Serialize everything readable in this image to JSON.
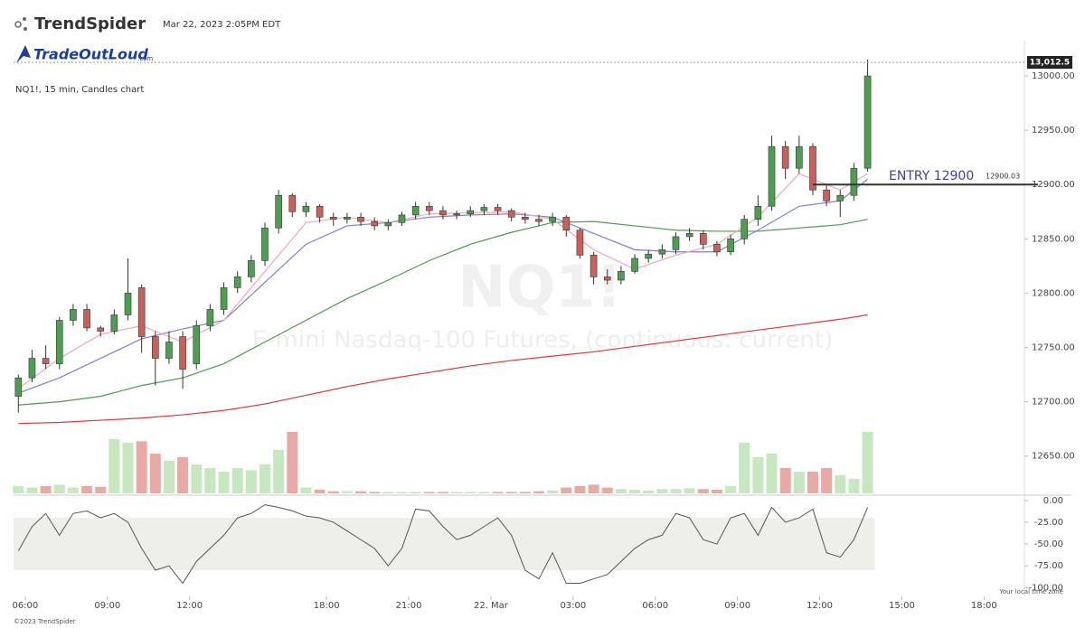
{
  "header": {
    "brand": "TrendSpider",
    "timestamp": "Mar 22, 2023 2:05PM EDT",
    "logo": "TradeOutLoud",
    "logo_suffix": ".com",
    "symbol": "NQ1!, 15 min, Candles chart",
    "watermark": "NQ1!",
    "watermark_subtitle": "E-mini Nasdaq-100 Futures, (continuous: current)",
    "timezone_note": "Your local time zone",
    "footer": "©2023 TrendSpider"
  },
  "chart_data": [
    {
      "type": "candlestick",
      "xlim": [
        -0.85,
        72.75
      ],
      "ylim": [
        12614,
        13020
      ],
      "yticks": [
        {
          "value": 12650,
          "label": "12650.00"
        },
        {
          "value": 12700,
          "label": "12700.00"
        },
        {
          "value": 12750,
          "label": "12750.00"
        },
        {
          "value": 12800,
          "label": "12800.00"
        },
        {
          "value": 12850,
          "label": "12850.00"
        },
        {
          "value": 12900,
          "label": "12900.00"
        },
        {
          "value": 12950,
          "label": "12950.00"
        },
        {
          "value": 13000,
          "label": "13000.00"
        }
      ],
      "x": [
        -0.5,
        0.5,
        1.5,
        2.5,
        3.5,
        4.5,
        5.5,
        6.5,
        7.5,
        8.5,
        9.5,
        10.5,
        11.5,
        12.5,
        13.5,
        14.5,
        15.5,
        16.5,
        17.5,
        18.5,
        19.5,
        20.5,
        21.5,
        22.5,
        23.5,
        24.5,
        25.5,
        26.5,
        27.5,
        28.5,
        29.5,
        30.5,
        31.5,
        32.5,
        33.5,
        34.5,
        35.5,
        36.5,
        37.5,
        38.5,
        39.5,
        40.5,
        41.5,
        42.5,
        43.5,
        44.5,
        45.5,
        46.5,
        47.5,
        48.5,
        49.5,
        50.5,
        51.5,
        52.5,
        53.5,
        54.5,
        55.5,
        56.5,
        57.5,
        58.5,
        59.5,
        60.5,
        61.5
      ],
      "open": [
        12705,
        12722,
        12740,
        12735,
        12775,
        12785,
        12768,
        12765,
        12780,
        12805,
        12760,
        12740,
        12760,
        12735,
        12770,
        12785,
        12805,
        12815,
        12830,
        12860,
        12890,
        12875,
        12880,
        12870,
        12868,
        12870,
        12866,
        12862,
        12865,
        12872,
        12880,
        12876,
        12872,
        12873,
        12876,
        12879,
        12876,
        12870,
        12868,
        12866,
        12870,
        12858,
        12835,
        12815,
        12812,
        12820,
        12832,
        12836,
        12840,
        12852,
        12855,
        12845,
        12838,
        12850,
        12868,
        12880,
        12935,
        12915,
        12935,
        12895,
        12885,
        12890,
        12915
      ],
      "high": [
        12725,
        12748,
        12752,
        12778,
        12790,
        12790,
        12770,
        12785,
        12832,
        12808,
        12765,
        12765,
        12765,
        12775,
        12790,
        12810,
        12820,
        12835,
        12865,
        12895,
        12892,
        12884,
        12882,
        12874,
        12874,
        12874,
        12870,
        12868,
        12875,
        12884,
        12884,
        12880,
        12876,
        12880,
        12882,
        12882,
        12878,
        12874,
        12872,
        12874,
        12872,
        12860,
        12838,
        12822,
        12825,
        12836,
        12840,
        12845,
        12856,
        12860,
        12858,
        12848,
        12854,
        12872,
        12890,
        12945,
        12940,
        12945,
        12938,
        12900,
        12895,
        12920,
        13015
      ],
      "low": [
        12690,
        12718,
        12730,
        12730,
        12770,
        12765,
        12760,
        12762,
        12775,
        12745,
        12715,
        12735,
        12712,
        12730,
        12765,
        12780,
        12800,
        12810,
        12825,
        12855,
        12870,
        12870,
        12865,
        12862,
        12864,
        12862,
        12858,
        12858,
        12862,
        12868,
        12872,
        12868,
        12868,
        12870,
        12872,
        12872,
        12866,
        12864,
        12862,
        12862,
        12852,
        12832,
        12808,
        12808,
        12808,
        12818,
        12828,
        12832,
        12836,
        12848,
        12840,
        12834,
        12835,
        12845,
        12862,
        12876,
        12905,
        12910,
        12890,
        12880,
        12870,
        12885,
        12912
      ],
      "close": [
        12722,
        12740,
        12735,
        12775,
        12785,
        12768,
        12765,
        12780,
        12800,
        12760,
        12740,
        12755,
        12730,
        12770,
        12785,
        12805,
        12815,
        12830,
        12860,
        12890,
        12875,
        12880,
        12870,
        12868,
        12870,
        12866,
        12862,
        12865,
        12872,
        12880,
        12876,
        12872,
        12873,
        12876,
        12879,
        12876,
        12870,
        12868,
        12866,
        12870,
        12858,
        12835,
        12815,
        12812,
        12820,
        12832,
        12836,
        12840,
        12852,
        12855,
        12845,
        12838,
        12850,
        12868,
        12880,
        12935,
        12915,
        12935,
        12895,
        12885,
        12890,
        12915,
        13000
      ],
      "up_color": "#4f9d52",
      "down_color": "#c9605a",
      "volume": {
        "ylim": [
          0,
          100
        ],
        "up_color": "#c6e7bf",
        "down_color": "#e9aaa5",
        "values": [
          10,
          8,
          10,
          12,
          8,
          10,
          9,
          75,
          70,
          72,
          55,
          45,
          50,
          40,
          35,
          30,
          35,
          32,
          40,
          60,
          85,
          8,
          5,
          3,
          3,
          3,
          2,
          2,
          2,
          2,
          2,
          2,
          2,
          2,
          2,
          2,
          2,
          2,
          3,
          4,
          8,
          10,
          12,
          8,
          6,
          5,
          4,
          6,
          6,
          7,
          6,
          5,
          10,
          70,
          50,
          55,
          35,
          30,
          30,
          35,
          25,
          20,
          85
        ]
      },
      "ma_x": [
        -0.5,
        2.5,
        5.5,
        8.5,
        11.5,
        14.5,
        17.5,
        20.5,
        23.5,
        26.5,
        29.5,
        32.5,
        35.5,
        38.5,
        41.5,
        44.5,
        47.5,
        50.5,
        53.5,
        56.5,
        59.5,
        61.5
      ],
      "moving_averages": [
        {
          "color": "#d43c3c",
          "values": [
            12680,
            12681,
            12683,
            12685,
            12688,
            12692,
            12698,
            12706,
            12714,
            12721,
            12727,
            12733,
            12738,
            12742,
            12746,
            12751,
            12756,
            12761,
            12766,
            12771,
            12776,
            12780
          ]
        },
        {
          "color": "#4d9a4d",
          "values": [
            12697,
            12700,
            12705,
            12715,
            12722,
            12735,
            12755,
            12775,
            12795,
            12812,
            12830,
            12845,
            12856,
            12865,
            12866,
            12862,
            12858,
            12857,
            12857,
            12860,
            12863,
            12868
          ]
        },
        {
          "color": "#7d80d2",
          "values": [
            12708,
            12722,
            12740,
            12758,
            12767,
            12775,
            12810,
            12845,
            12862,
            12865,
            12870,
            12872,
            12873,
            12870,
            12855,
            12840,
            12838,
            12838,
            12858,
            12880,
            12885,
            12905
          ]
        },
        {
          "color": "#f2a7b5",
          "values": [
            12712,
            12740,
            12762,
            12770,
            12755,
            12775,
            12820,
            12865,
            12870,
            12865,
            12873,
            12874,
            12875,
            12868,
            12840,
            12822,
            12835,
            12845,
            12870,
            12910,
            12895,
            12910
          ]
        }
      ],
      "last_price": {
        "value": 13012.5,
        "label": "13,012.5"
      },
      "entry": {
        "text": "ENTRY 12900",
        "value": 12900.03,
        "label": "12900.03",
        "start_x": 57.5
      }
    },
    {
      "type": "line",
      "xlim": [
        -0.85,
        72.75
      ],
      "ylim": [
        -110,
        6
      ],
      "yticks": [
        {
          "value": 0,
          "label": "0.00"
        },
        {
          "value": -25,
          "label": "-25.00"
        },
        {
          "value": -50,
          "label": "-50.00"
        },
        {
          "value": -75,
          "label": "-75.00"
        },
        {
          "value": -100,
          "label": "-100.00"
        }
      ],
      "band": [
        -80,
        -20
      ],
      "band_color": "#eeeeea",
      "xticks": [
        {
          "value": 0,
          "label": "06:00"
        },
        {
          "value": 6,
          "label": "09:00"
        },
        {
          "value": 12,
          "label": "12:00"
        },
        {
          "value": 22,
          "label": "18:00"
        },
        {
          "value": 28,
          "label": "21:00"
        },
        {
          "value": 34,
          "label": "22. Mar"
        },
        {
          "value": 40,
          "label": "03:00"
        },
        {
          "value": 46,
          "label": "06:00"
        },
        {
          "value": 52,
          "label": "09:00"
        },
        {
          "value": 58,
          "label": "12:00"
        },
        {
          "value": 64,
          "label": "15:00"
        },
        {
          "value": 70,
          "label": "18:00"
        }
      ],
      "x": [
        -0.5,
        0.5,
        1.5,
        2.5,
        3.5,
        4.5,
        5.5,
        6.5,
        7.5,
        8.5,
        9.5,
        10.5,
        11.5,
        12.5,
        13.5,
        14.5,
        15.5,
        16.5,
        17.5,
        18.5,
        19.5,
        20.5,
        21.5,
        22.5,
        23.5,
        24.5,
        25.5,
        26.5,
        27.5,
        28.5,
        29.5,
        30.5,
        31.5,
        32.5,
        33.5,
        34.5,
        35.5,
        36.5,
        37.5,
        38.5,
        39.5,
        40.5,
        41.5,
        42.5,
        43.5,
        44.5,
        45.5,
        46.5,
        47.5,
        48.5,
        49.5,
        50.5,
        51.5,
        52.5,
        53.5,
        54.5,
        55.5,
        56.5,
        57.5,
        58.5,
        59.5,
        60.5,
        61.5
      ],
      "series": [
        {
          "color": "#555555",
          "values": [
            -58,
            -30,
            -15,
            -40,
            -15,
            -12,
            -20,
            -15,
            -25,
            -55,
            -80,
            -75,
            -95,
            -70,
            -55,
            -40,
            -20,
            -15,
            -5,
            -8,
            -12,
            -18,
            -20,
            -25,
            -35,
            -45,
            -55,
            -75,
            -55,
            -10,
            -12,
            -30,
            -45,
            -40,
            -30,
            -20,
            -40,
            -80,
            -90,
            -60,
            -95,
            -95,
            -90,
            -85,
            -70,
            -55,
            -45,
            -40,
            -15,
            -20,
            -45,
            -50,
            -20,
            -15,
            -40,
            -8,
            -25,
            -20,
            -10,
            -60,
            -65,
            -45,
            -8
          ]
        }
      ]
    }
  ]
}
